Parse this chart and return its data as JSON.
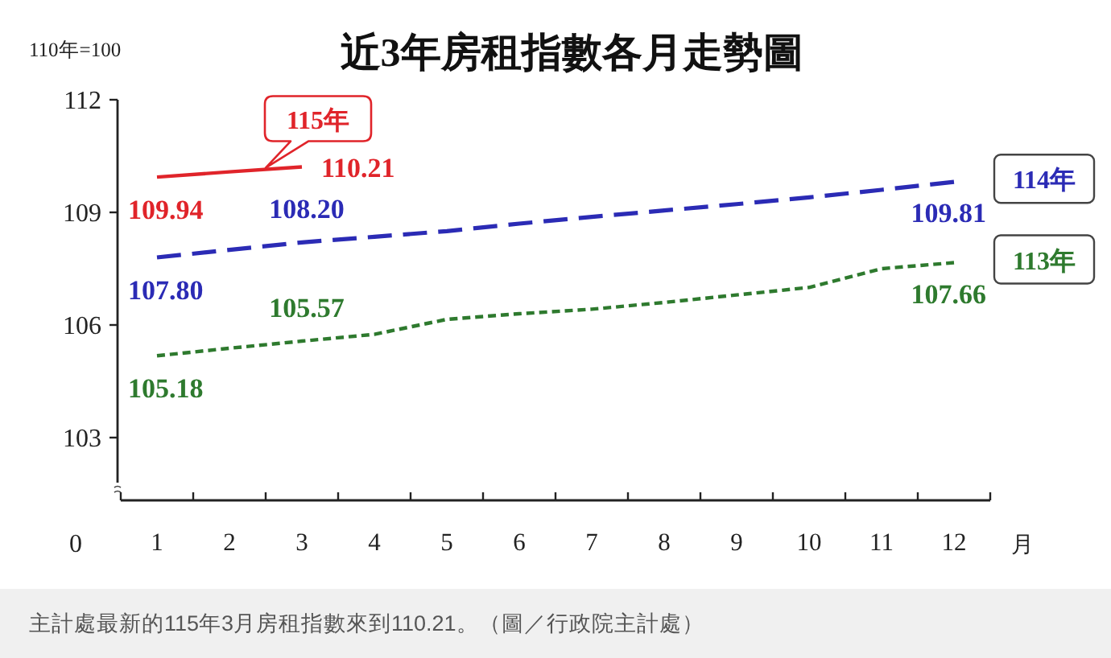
{
  "chart_data": {
    "type": "line",
    "title": "近3年房租指數各月走勢圖",
    "ylabel": "110年=100",
    "xlabel": "月",
    "categories": [
      "1",
      "2",
      "3",
      "4",
      "5",
      "6",
      "7",
      "8",
      "9",
      "10",
      "11",
      "12"
    ],
    "ylim": [
      101.8,
      112
    ],
    "yticks": [
      103,
      106,
      109,
      112
    ],
    "series": [
      {
        "name": "115年",
        "color": "#e0242a",
        "line_style": "solid",
        "values": [
          109.94,
          110.08,
          110.21,
          null,
          null,
          null,
          null,
          null,
          null,
          null,
          null,
          null
        ],
        "value_labels": [
          "109.94",
          null,
          "110.21",
          null,
          null,
          null,
          null,
          null,
          null,
          null,
          null,
          null
        ]
      },
      {
        "name": "114年",
        "color": "#2b2bb5",
        "line_style": "dashed",
        "values": [
          107.8,
          108.0,
          108.2,
          108.35,
          108.5,
          108.7,
          108.88,
          109.05,
          109.22,
          109.4,
          109.6,
          109.81
        ],
        "value_labels": [
          "107.80",
          null,
          "108.20",
          null,
          null,
          null,
          null,
          null,
          null,
          null,
          null,
          "109.81"
        ]
      },
      {
        "name": "113年",
        "color": "#2e7a2e",
        "line_style": "dotted",
        "values": [
          105.18,
          105.38,
          105.57,
          105.75,
          106.15,
          106.3,
          106.42,
          106.6,
          106.8,
          107.0,
          107.5,
          107.66
        ],
        "value_labels": [
          "105.18",
          null,
          "105.57",
          null,
          null,
          null,
          null,
          null,
          null,
          null,
          null,
          "107.66"
        ]
      }
    ],
    "annotations": [
      "0",
      "主計處最新的115年3月房租指數來到110.21。（圖／行政院主計處）"
    ]
  }
}
